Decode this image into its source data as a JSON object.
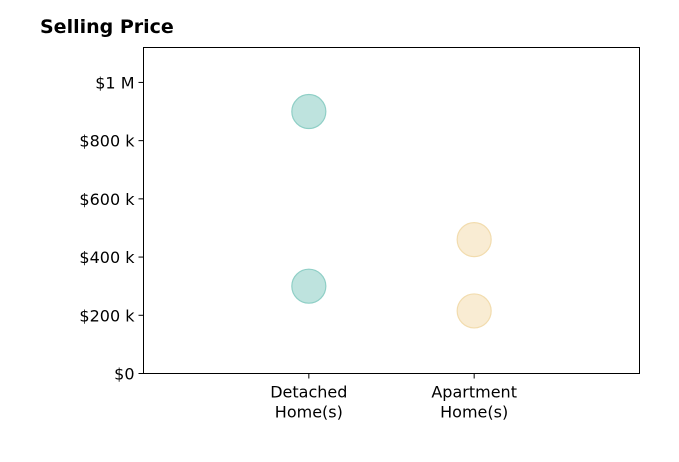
{
  "chart_data": {
    "type": "scatter",
    "title": "Selling Price",
    "xlabel": "",
    "ylabel": "",
    "categories": [
      {
        "lines": [
          "Detached",
          "Home(s)"
        ]
      },
      {
        "lines": [
          "Apartment",
          "Home(s)"
        ]
      }
    ],
    "x_range": [
      -1,
      2
    ],
    "ylim": [
      0,
      1120000
    ],
    "y_ticks": [
      {
        "value": 0,
        "label": "$0"
      },
      {
        "value": 200000,
        "label": "$200 k"
      },
      {
        "value": 400000,
        "label": "$400 k"
      },
      {
        "value": 600000,
        "label": "$600 k"
      },
      {
        "value": 800000,
        "label": "$800 k"
      },
      {
        "value": 1000000,
        "label": "$1 M"
      }
    ],
    "grid": false,
    "series": [
      {
        "category": 0,
        "color": "#a8dad3",
        "edge": "#8fcfc6",
        "values": [
          900000,
          300000
        ]
      },
      {
        "category": 1,
        "color": "#f7e6c4",
        "edge": "#f2dcae",
        "values": [
          460000,
          215000
        ]
      }
    ]
  }
}
